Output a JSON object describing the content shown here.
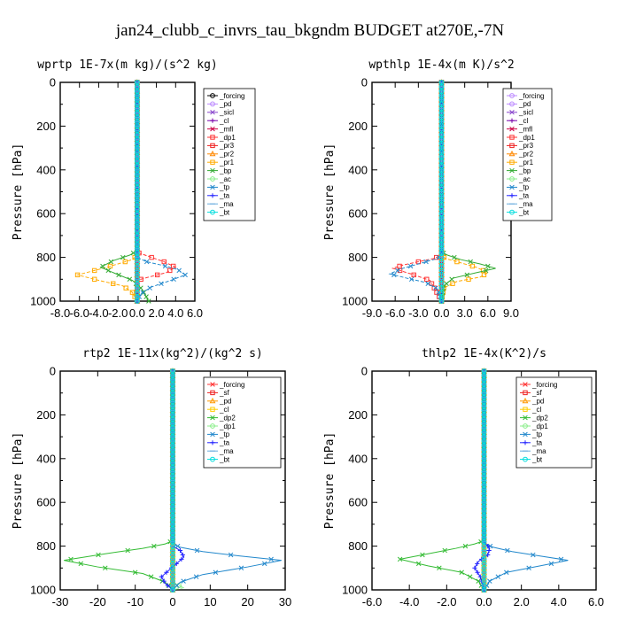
{
  "figure_title": "jan24_clubb_c_invrs_tau_bkgndm  BUDGET at270E,-7N",
  "chart_data": [
    {
      "type": "line",
      "title": "wprtp  1E-7x(m kg)/(s^2 kg)",
      "ylabel": "Pressure [hPa]",
      "xlim": [
        -8,
        6
      ],
      "xticks": [
        "-8.0",
        "-6.0",
        "-4.0",
        "-2.0",
        "0.0",
        "2.0",
        "4.0",
        "6.0"
      ],
      "ylim": [
        1000,
        0
      ],
      "yticks": [
        "0",
        "200",
        "400",
        "600",
        "800",
        "1000"
      ],
      "legend_position": "top-right",
      "series": [
        {
          "name": "_forcing",
          "color": "#000000",
          "marker": "o",
          "x": [
            0,
            0
          ],
          "y": [
            0,
            1000
          ]
        },
        {
          "name": "_pd",
          "color": "#bb88ff",
          "marker": "o",
          "x": [
            0,
            0
          ],
          "y": [
            0,
            1000
          ]
        },
        {
          "name": "_sicl",
          "color": "#8844cc",
          "marker": "x",
          "x": [
            0,
            0
          ],
          "y": [
            0,
            1000
          ]
        },
        {
          "name": "_cl",
          "color": "#7700aa",
          "marker": "+",
          "x": [
            0,
            0
          ],
          "y": [
            0,
            1000
          ]
        },
        {
          "name": "_mfl",
          "color": "#cc0044",
          "marker": "x",
          "x": [
            0,
            0
          ],
          "y": [
            0,
            1000
          ]
        },
        {
          "name": "_dp1",
          "color": "#ff3333",
          "marker": "s",
          "x": [
            0,
            0,
            0.2,
            1.5,
            2.8,
            4.0,
            3.0,
            1.2,
            0,
            0
          ],
          "y": [
            0,
            760,
            780,
            800,
            820,
            845,
            870,
            890,
            905,
            1000
          ]
        },
        {
          "name": "_pr3",
          "color": "#ee2222",
          "marker": "s",
          "x": [
            0,
            0
          ],
          "y": [
            0,
            1000
          ]
        },
        {
          "name": "_pr2",
          "color": "#ff8800",
          "marker": "^",
          "x": [
            0,
            0
          ],
          "y": [
            0,
            1000
          ]
        },
        {
          "name": "_pr1",
          "color": "#ffaa00",
          "marker": "s",
          "x": [
            0,
            0,
            -0.5,
            -2.0,
            -4.0,
            -6.2,
            -4.0,
            -1.5,
            -0.5,
            0
          ],
          "y": [
            0,
            790,
            810,
            830,
            855,
            880,
            905,
            930,
            960,
            1000
          ]
        },
        {
          "name": "_bp",
          "color": "#33aa33",
          "marker": "x",
          "x": [
            0,
            0,
            -0.8,
            -2.5,
            -3.8,
            -2.2,
            -0.5,
            0.5,
            1.2
          ],
          "y": [
            0,
            770,
            790,
            815,
            845,
            875,
            905,
            945,
            1000
          ]
        },
        {
          "name": "_ac",
          "color": "#88ee88",
          "marker": "o",
          "x": [
            0,
            0
          ],
          "y": [
            0,
            1000
          ]
        },
        {
          "name": "_tp",
          "color": "#2288cc",
          "marker": "x",
          "x": [
            0,
            0,
            1.0,
            2.5,
            4.2,
            5.0,
            3.5,
            1.5,
            0.4,
            0
          ],
          "y": [
            0,
            800,
            820,
            835,
            855,
            880,
            905,
            935,
            965,
            1000
          ]
        },
        {
          "name": "_ta",
          "color": "#2222ff",
          "marker": "+",
          "x": [
            0,
            0
          ],
          "y": [
            0,
            1000
          ]
        },
        {
          "name": "_ma",
          "color": "#66aadd",
          "marker": "-",
          "x": [
            0,
            0
          ],
          "y": [
            0,
            1000
          ]
        },
        {
          "name": "_bt",
          "color": "#00dddd",
          "marker": "o",
          "x": [
            0,
            0
          ],
          "y": [
            0,
            1000
          ]
        }
      ]
    },
    {
      "type": "line",
      "title": "wpthlp  1E-4x(m K)/s^2",
      "ylabel": "Pressure [hPa]",
      "xlim": [
        -9,
        9
      ],
      "xticks": [
        "-9.0",
        "-6.0",
        "-3.0",
        "0.0",
        "3.0",
        "6.0",
        "9.0"
      ],
      "ylim": [
        1000,
        0
      ],
      "yticks": [
        "0",
        "200",
        "400",
        "600",
        "800",
        "1000"
      ],
      "legend_position": "top-right",
      "series": [
        {
          "name": "_forcing",
          "color": "#bb88ff",
          "marker": "o",
          "x": [
            0,
            0
          ],
          "y": [
            0,
            1000
          ]
        },
        {
          "name": "_pd",
          "color": "#bb88ff",
          "marker": "o",
          "x": [
            0,
            0
          ],
          "y": [
            0,
            1000
          ]
        },
        {
          "name": "_sicl",
          "color": "#8844cc",
          "marker": "x",
          "x": [
            0,
            0
          ],
          "y": [
            0,
            1000
          ]
        },
        {
          "name": "_cl",
          "color": "#7700aa",
          "marker": "+",
          "x": [
            0,
            0
          ],
          "y": [
            0,
            1000
          ]
        },
        {
          "name": "_mfl",
          "color": "#cc0044",
          "marker": "x",
          "x": [
            0,
            0
          ],
          "y": [
            0,
            1000
          ]
        },
        {
          "name": "_dp1",
          "color": "#ff3333",
          "marker": "s",
          "x": [
            0,
            0,
            -1.0,
            -3.0,
            -5.0,
            -6.3,
            -4.0,
            -1.5,
            0
          ],
          "y": [
            0,
            790,
            805,
            820,
            835,
            850,
            875,
            905,
            1000
          ]
        },
        {
          "name": "_pr3",
          "color": "#ee2222",
          "marker": "s",
          "x": [
            0,
            0
          ],
          "y": [
            0,
            1000
          ]
        },
        {
          "name": "_pr2",
          "color": "#ff8800",
          "marker": "^",
          "x": [
            0,
            0
          ],
          "y": [
            0,
            1000
          ]
        },
        {
          "name": "_pr1",
          "color": "#ffaa00",
          "marker": "s",
          "x": [
            0,
            0,
            0.5,
            2.5,
            4.5,
            6.0,
            5.0,
            2.0,
            0.3,
            0
          ],
          "y": [
            0,
            790,
            805,
            825,
            845,
            870,
            890,
            910,
            940,
            1000
          ]
        },
        {
          "name": "_bp",
          "color": "#33aa33",
          "marker": "x",
          "x": [
            0,
            0,
            0.8,
            2.5,
            5.0,
            7.0,
            4.5,
            1.5,
            0.3,
            0
          ],
          "y": [
            0,
            775,
            790,
            810,
            830,
            850,
            870,
            895,
            930,
            1000
          ]
        },
        {
          "name": "_ac",
          "color": "#88ee88",
          "marker": "o",
          "x": [
            0,
            0
          ],
          "y": [
            0,
            1000
          ]
        },
        {
          "name": "_tp",
          "color": "#2288cc",
          "marker": "x",
          "x": [
            0,
            0,
            -1.0,
            -3.0,
            -5.0,
            -6.7,
            -4.5,
            -2.0,
            -0.5,
            0
          ],
          "y": [
            0,
            795,
            810,
            830,
            850,
            875,
            895,
            915,
            945,
            1000
          ]
        },
        {
          "name": "_ta",
          "color": "#2222ff",
          "marker": "+",
          "x": [
            0,
            0
          ],
          "y": [
            0,
            1000
          ]
        },
        {
          "name": "_ma",
          "color": "#66aadd",
          "marker": "-",
          "x": [
            0,
            0
          ],
          "y": [
            0,
            1000
          ]
        },
        {
          "name": "_bt",
          "color": "#00dddd",
          "marker": "o",
          "x": [
            0,
            0
          ],
          "y": [
            0,
            1000
          ]
        }
      ]
    },
    {
      "type": "line",
      "title": "rtp2  1E-11x(kg^2)/(kg^2 s)",
      "ylabel": "Pressure [hPa]",
      "xlim": [
        -30,
        30
      ],
      "xticks": [
        "-30",
        "-20",
        "-10",
        "0",
        "10",
        "20",
        "30"
      ],
      "ylim": [
        1000,
        0
      ],
      "yticks": [
        "0",
        "200",
        "400",
        "600",
        "800",
        "1000"
      ],
      "legend_position": "top-right",
      "series": [
        {
          "name": "_forcing",
          "color": "#ff3333",
          "marker": "x",
          "x": [
            0,
            0
          ],
          "y": [
            0,
            1000
          ]
        },
        {
          "name": "_sf",
          "color": "#ee2222",
          "marker": "s",
          "x": [
            0,
            0
          ],
          "y": [
            0,
            1000
          ]
        },
        {
          "name": "_pd",
          "color": "#ff9900",
          "marker": "^",
          "x": [
            0,
            0
          ],
          "y": [
            0,
            1000
          ]
        },
        {
          "name": "_cl",
          "color": "#ffcc00",
          "marker": "s",
          "x": [
            0,
            0
          ],
          "y": [
            0,
            1000
          ]
        },
        {
          "name": "_dp2",
          "color": "#33bb33",
          "marker": "x",
          "x": [
            0,
            0,
            -2,
            -8,
            -18,
            -29,
            -20,
            -8,
            -2,
            0
          ],
          "y": [
            0,
            775,
            790,
            810,
            835,
            865,
            895,
            925,
            965,
            1000
          ]
        },
        {
          "name": "_dp1",
          "color": "#88ee88",
          "marker": "o",
          "x": [
            0,
            0,
            1,
            3,
            0
          ],
          "y": [
            0,
            960,
            975,
            990,
            1000
          ]
        },
        {
          "name": "_tp",
          "color": "#2288cc",
          "marker": "x",
          "x": [
            0,
            0,
            2,
            8,
            18,
            29,
            20,
            8,
            2,
            0
          ],
          "y": [
            0,
            790,
            805,
            825,
            845,
            865,
            895,
            930,
            965,
            1000
          ]
        },
        {
          "name": "_ta",
          "color": "#2222ff",
          "marker": "+",
          "x": [
            0,
            0,
            2,
            3,
            1,
            -1,
            -3,
            -2,
            0
          ],
          "y": [
            0,
            800,
            820,
            850,
            880,
            910,
            940,
            970,
            1000
          ]
        },
        {
          "name": "_ma",
          "color": "#66aadd",
          "marker": "-",
          "x": [
            0,
            0
          ],
          "y": [
            0,
            1000
          ]
        },
        {
          "name": "_bt",
          "color": "#00dddd",
          "marker": "o",
          "x": [
            0,
            0
          ],
          "y": [
            0,
            1000
          ]
        }
      ]
    },
    {
      "type": "line",
      "title": "thlp2  1E-4x(K^2)/s",
      "ylabel": "Pressure [hPa]",
      "xlim": [
        -6,
        6
      ],
      "xticks": [
        "-6.0",
        "-4.0",
        "-2.0",
        "0.0",
        "2.0",
        "4.0",
        "6.0"
      ],
      "ylim": [
        1000,
        0
      ],
      "yticks": [
        "0",
        "200",
        "400",
        "600",
        "800",
        "1000"
      ],
      "legend_position": "top-right",
      "series": [
        {
          "name": "_forcing",
          "color": "#ff3333",
          "marker": "x",
          "x": [
            0,
            0
          ],
          "y": [
            0,
            1000
          ]
        },
        {
          "name": "_sf",
          "color": "#ee2222",
          "marker": "s",
          "x": [
            0,
            0
          ],
          "y": [
            0,
            1000
          ]
        },
        {
          "name": "_pd",
          "color": "#ff9900",
          "marker": "^",
          "x": [
            0,
            0
          ],
          "y": [
            0,
            1000
          ]
        },
        {
          "name": "_cl",
          "color": "#ffcc00",
          "marker": "s",
          "x": [
            0,
            0
          ],
          "y": [
            0,
            1000
          ]
        },
        {
          "name": "_dp2",
          "color": "#33bb33",
          "marker": "x",
          "x": [
            0,
            0,
            -0.5,
            -1.5,
            -3.0,
            -4.5,
            -3.0,
            -1.2,
            -0.3,
            0
          ],
          "y": [
            0,
            775,
            790,
            810,
            835,
            860,
            890,
            920,
            960,
            1000
          ]
        },
        {
          "name": "_dp1",
          "color": "#88ee88",
          "marker": "o",
          "x": [
            0,
            0
          ],
          "y": [
            0,
            1000
          ]
        },
        {
          "name": "_tp",
          "color": "#2288cc",
          "marker": "x",
          "x": [
            0,
            0,
            0.5,
            1.5,
            3.0,
            4.5,
            3.0,
            1.2,
            0.3,
            0
          ],
          "y": [
            0,
            790,
            805,
            825,
            845,
            865,
            890,
            920,
            960,
            1000
          ]
        },
        {
          "name": "_ta",
          "color": "#2222ff",
          "marker": "+",
          "x": [
            0,
            0,
            0.3,
            0.2,
            -0.3,
            -0.5,
            -0.2,
            0
          ],
          "y": [
            0,
            780,
            810,
            840,
            870,
            900,
            940,
            1000
          ]
        },
        {
          "name": "_ma",
          "color": "#66aadd",
          "marker": "-",
          "x": [
            0,
            0
          ],
          "y": [
            0,
            1000
          ]
        },
        {
          "name": "_bt",
          "color": "#00dddd",
          "marker": "o",
          "x": [
            0,
            0
          ],
          "y": [
            0,
            1000
          ]
        }
      ]
    }
  ]
}
